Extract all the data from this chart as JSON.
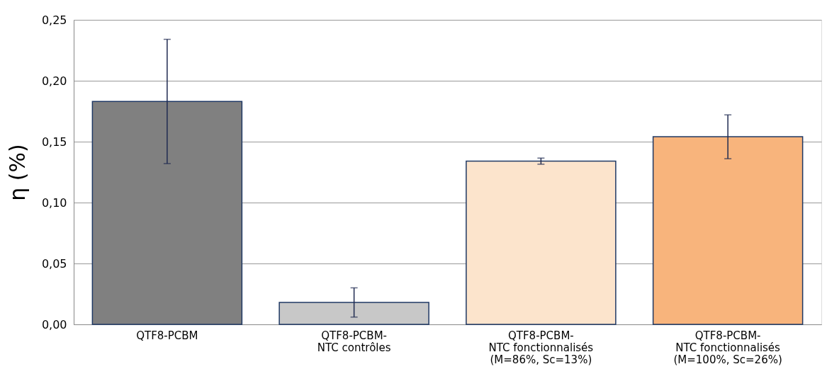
{
  "chart_data": {
    "type": "bar",
    "ylabel": "η (%)",
    "categories": [
      "QTF8-PCBM",
      "QTF8-PCBM-\nNTC contrôles",
      "QTF8-PCBM-\nNTC fonctionnalisés\n(M=86%, Sc=13%)",
      "QTF8-PCBM-\nNTC fonctionnalisés\n(M=100%, Sc=26%)"
    ],
    "values": [
      0.183,
      0.018,
      0.134,
      0.154
    ],
    "errors": [
      0.051,
      0.012,
      0.0025,
      0.018
    ],
    "colors": [
      "#808080",
      "#c8c8c8",
      "#fce4cc",
      "#f8b47c"
    ],
    "ylim": [
      0,
      0.25
    ],
    "yticks": [
      {
        "value": 0,
        "label": "0,00"
      },
      {
        "value": 0.05,
        "label": "0,05"
      },
      {
        "value": 0.1,
        "label": "0,10"
      },
      {
        "value": 0.15,
        "label": "0,15"
      },
      {
        "value": 0.2,
        "label": "0,20"
      },
      {
        "value": 0.25,
        "label": "0,25"
      }
    ],
    "grid": "y"
  }
}
